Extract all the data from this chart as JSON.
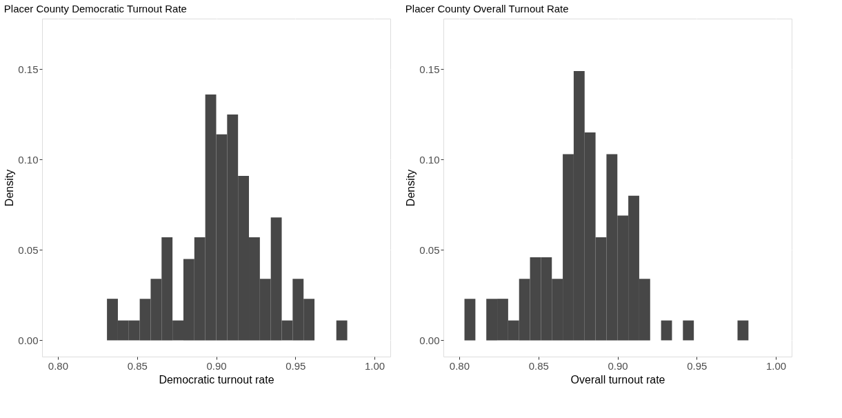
{
  "chart_data": [
    {
      "type": "histogram",
      "title": "Placer County Democratic Turnout Rate",
      "xlabel": "Democratic turnout rate",
      "ylabel": "Density",
      "bins": [
        0.831,
        0.8379,
        0.8448,
        0.8517,
        0.8586,
        0.8655,
        0.8724,
        0.8793,
        0.8862,
        0.8931,
        0.9,
        0.9069,
        0.9138,
        0.9207,
        0.9276,
        0.9345,
        0.9414,
        0.9483,
        0.9552,
        0.9621,
        0.969,
        0.9759,
        0.9828
      ],
      "values": [
        0.023,
        0.011,
        0.011,
        0.023,
        0.034,
        0.057,
        0.011,
        0.045,
        0.057,
        0.136,
        0.114,
        0.125,
        0.091,
        0.057,
        0.034,
        0.068,
        0.011,
        0.034,
        0.023,
        0,
        0,
        0.011
      ],
      "color": "#474747",
      "xlim": [
        0.79,
        1.01
      ],
      "ylim": [
        -0.009,
        0.178
      ],
      "xticks": [
        {
          "value": 0.8,
          "label": "0.80"
        },
        {
          "value": 0.85,
          "label": "0.85"
        },
        {
          "value": 0.9,
          "label": "0.90"
        },
        {
          "value": 0.95,
          "label": "0.95"
        },
        {
          "value": 1.0,
          "label": "1.00"
        }
      ],
      "yticks": [
        {
          "value": 0,
          "label": "0.00"
        },
        {
          "value": 0.05,
          "label": "0.05"
        },
        {
          "value": 0.1,
          "label": "0.10"
        },
        {
          "value": 0.15,
          "label": "0.15"
        }
      ],
      "grid": true
    },
    {
      "type": "histogram",
      "title": "Placer County Overall Turnout Rate",
      "xlabel": "Overall turnout rate",
      "ylabel": "Density",
      "bins": [
        0.8033,
        0.8102,
        0.8171,
        0.824,
        0.8309,
        0.8378,
        0.8447,
        0.8516,
        0.8585,
        0.8654,
        0.8723,
        0.8792,
        0.8861,
        0.893,
        0.8999,
        0.9068,
        0.9137,
        0.9206,
        0.9275,
        0.9344,
        0.9413,
        0.9482,
        0.9551,
        0.962,
        0.9689,
        0.9758,
        0.9827
      ],
      "values": [
        0.023,
        0,
        0.023,
        0.023,
        0.011,
        0.034,
        0.046,
        0.046,
        0.034,
        0.103,
        0.149,
        0.115,
        0.057,
        0.103,
        0.069,
        0.08,
        0.034,
        0,
        0.011,
        0,
        0.011,
        0,
        0,
        0,
        0,
        0.011
      ],
      "color": "#474747",
      "xlim": [
        0.79,
        1.01
      ],
      "ylim": [
        -0.009,
        0.178
      ],
      "xticks": [
        {
          "value": 0.8,
          "label": "0.80"
        },
        {
          "value": 0.85,
          "label": "0.85"
        },
        {
          "value": 0.9,
          "label": "0.90"
        },
        {
          "value": 0.95,
          "label": "0.95"
        },
        {
          "value": 1.0,
          "label": "1.00"
        }
      ],
      "yticks": [
        {
          "value": 0,
          "label": "0.00"
        },
        {
          "value": 0.05,
          "label": "0.05"
        },
        {
          "value": 0.1,
          "label": "0.10"
        },
        {
          "value": 0.15,
          "label": "0.15"
        }
      ],
      "grid": true
    }
  ]
}
